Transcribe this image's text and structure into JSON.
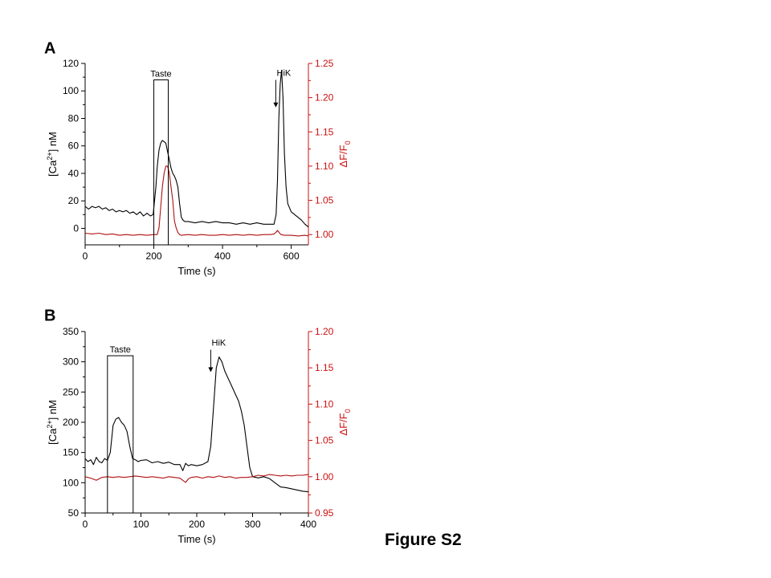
{
  "caption": "Figure S2",
  "colors": {
    "left_axis": "#000000",
    "right_axis": "#cc1111",
    "ca_trace": "#000000",
    "df_trace": "#b01010"
  },
  "chart_data": [
    {
      "panel_label": "A",
      "type": "line",
      "xlabel": "Time (s)",
      "xlim": [
        0,
        650
      ],
      "xticks": [
        0,
        200,
        400,
        600
      ],
      "ylabel_left": {
        "base": "[Ca",
        "sup": "2+",
        "tail": "] nM"
      },
      "ylim_left": [
        -12,
        120
      ],
      "yticks_left": [
        0,
        20,
        40,
        60,
        80,
        100,
        120
      ],
      "ylabel_right": {
        "base": "ΔF/F",
        "sub": "0"
      },
      "ylim_right": [
        0.985,
        1.25
      ],
      "yticks_right": [
        "1.00",
        "1.05",
        "1.10",
        "1.15",
        "1.20",
        "1.25"
      ],
      "annotations": [
        {
          "type": "box",
          "label": "Taste",
          "x0": 200,
          "x1": 242,
          "ytop": 108
        },
        {
          "type": "arrow",
          "label": "HiK",
          "x": 555,
          "ytop": 108,
          "ybot": 88
        }
      ],
      "series": [
        {
          "axis": "left",
          "color": "#000000",
          "x": [
            0,
            10,
            20,
            30,
            40,
            50,
            60,
            70,
            80,
            90,
            100,
            110,
            120,
            130,
            140,
            150,
            160,
            170,
            180,
            190,
            198,
            202,
            206,
            210,
            215,
            220,
            225,
            230,
            235,
            240,
            245,
            250,
            255,
            260,
            265,
            270,
            275,
            280,
            285,
            290,
            300,
            320,
            340,
            360,
            380,
            400,
            420,
            440,
            460,
            480,
            500,
            520,
            540,
            550,
            556,
            560,
            564,
            568,
            572,
            576,
            580,
            585,
            590,
            600,
            610,
            620,
            630,
            640,
            650
          ],
          "y": [
            16,
            14,
            16,
            15,
            16,
            14,
            15,
            13,
            14,
            12,
            13,
            12,
            13,
            11,
            12,
            10,
            12,
            9,
            11,
            9,
            10,
            20,
            30,
            45,
            57,
            62,
            64,
            63,
            62,
            56,
            50,
            44,
            40,
            38,
            35,
            30,
            18,
            8,
            6,
            5,
            5,
            4,
            5,
            4,
            5,
            4,
            4,
            3,
            4,
            3,
            4,
            3,
            3,
            3,
            10,
            35,
            80,
            105,
            115,
            95,
            55,
            30,
            18,
            12,
            10,
            8,
            6,
            3,
            1
          ]
        },
        {
          "axis": "right",
          "color": "#b01010",
          "x": [
            0,
            20,
            40,
            60,
            80,
            100,
            120,
            140,
            160,
            180,
            200,
            210,
            215,
            220,
            225,
            230,
            235,
            240,
            245,
            250,
            255,
            260,
            265,
            270,
            275,
            280,
            300,
            320,
            340,
            360,
            380,
            400,
            420,
            440,
            460,
            480,
            500,
            520,
            540,
            550,
            555,
            560,
            565,
            570,
            580,
            600,
            620,
            640,
            650
          ],
          "y": [
            1.002,
            1.001,
            1.002,
            1.0,
            1.001,
            0.999,
            1.0,
            0.999,
            1.0,
            0.999,
            1.0,
            1.0,
            1.01,
            1.04,
            1.07,
            1.09,
            1.1,
            1.1,
            1.09,
            1.07,
            1.05,
            1.02,
            1.01,
            1.003,
            1.0,
            0.999,
            1.0,
            0.999,
            1.0,
            0.999,
            0.999,
            1.0,
            0.999,
            1.0,
            0.999,
            1.0,
            0.999,
            1.0,
            1.0,
            1.001,
            1.003,
            1.006,
            1.003,
            1.0,
            0.999,
            0.999,
            0.998,
            0.999,
            0.998
          ]
        }
      ]
    },
    {
      "panel_label": "B",
      "type": "line",
      "xlabel": "Time (s)",
      "xlim": [
        0,
        400
      ],
      "xticks": [
        0,
        100,
        200,
        300,
        400
      ],
      "ylabel_left": {
        "base": "[Ca",
        "sup": "2+",
        "tail": "] nM"
      },
      "ylim_left": [
        50,
        350
      ],
      "yticks_left": [
        50,
        100,
        150,
        200,
        250,
        300,
        350
      ],
      "ylabel_right": {
        "base": "ΔF/F",
        "sub": "0"
      },
      "ylim_right": [
        0.95,
        1.2
      ],
      "yticks_right": [
        "0.95",
        "1.00",
        "1.05",
        "1.10",
        "1.15",
        "1.20"
      ],
      "annotations": [
        {
          "type": "box",
          "label": "Taste",
          "x0": 40,
          "x1": 86,
          "ytop": 310
        },
        {
          "type": "arrow",
          "label": "HiK",
          "x": 225,
          "ytop": 320,
          "ybot": 283
        }
      ],
      "series": [
        {
          "axis": "left",
          "color": "#000000",
          "x": [
            0,
            5,
            10,
            15,
            20,
            25,
            30,
            35,
            40,
            45,
            50,
            55,
            60,
            65,
            70,
            75,
            80,
            85,
            90,
            95,
            100,
            110,
            120,
            130,
            140,
            150,
            160,
            170,
            175,
            180,
            185,
            190,
            200,
            210,
            220,
            225,
            230,
            235,
            240,
            245,
            250,
            255,
            260,
            265,
            270,
            275,
            280,
            285,
            290,
            295,
            300,
            310,
            320,
            330,
            340,
            350,
            360,
            370,
            380,
            390,
            400
          ],
          "y": [
            140,
            135,
            138,
            130,
            142,
            135,
            133,
            140,
            137,
            150,
            195,
            205,
            208,
            200,
            195,
            185,
            160,
            140,
            138,
            135,
            137,
            138,
            133,
            135,
            132,
            134,
            130,
            130,
            120,
            132,
            128,
            130,
            128,
            130,
            135,
            160,
            225,
            290,
            308,
            300,
            285,
            275,
            265,
            255,
            245,
            235,
            218,
            195,
            160,
            125,
            110,
            108,
            110,
            107,
            100,
            93,
            92,
            90,
            88,
            86,
            85
          ]
        },
        {
          "axis": "right",
          "color": "#b01010",
          "x": [
            0,
            10,
            20,
            30,
            40,
            50,
            60,
            70,
            80,
            90,
            100,
            110,
            120,
            130,
            140,
            150,
            160,
            170,
            175,
            180,
            185,
            190,
            200,
            210,
            220,
            230,
            240,
            250,
            260,
            270,
            280,
            290,
            300,
            310,
            320,
            330,
            340,
            350,
            360,
            370,
            380,
            390,
            400
          ],
          "y": [
            1.0,
            0.998,
            0.995,
            0.999,
            1.0,
            0.999,
            1.0,
            0.999,
            1.0,
            1.001,
            1.0,
            0.999,
            1.0,
            0.999,
            0.998,
            1.0,
            0.999,
            0.998,
            0.995,
            0.992,
            0.997,
            0.999,
            1.0,
            0.998,
            1.0,
            0.999,
            1.001,
            0.999,
            1.0,
            0.998,
            0.999,
            0.999,
            1.0,
            1.002,
            1.001,
            1.003,
            1.002,
            1.001,
            1.002,
            1.001,
            1.002,
            1.002,
            1.003
          ]
        }
      ]
    }
  ]
}
